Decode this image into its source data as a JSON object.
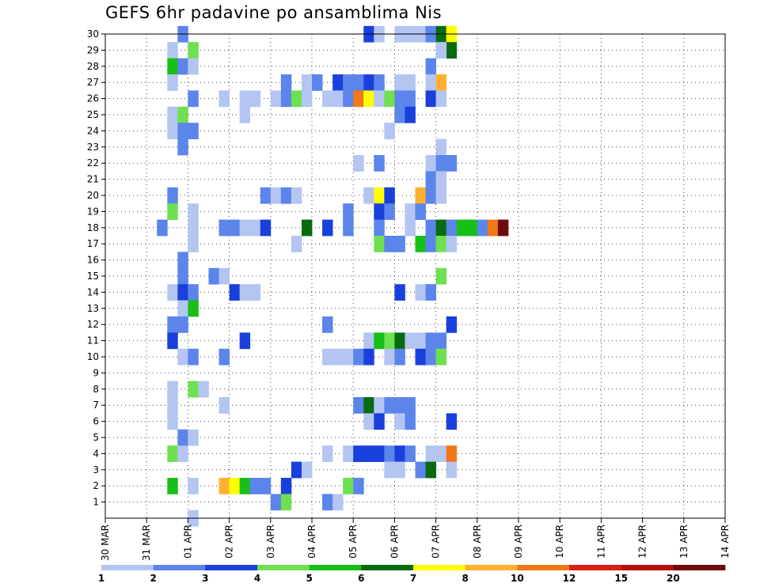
{
  "title": "GEFS 6hr padavine po ansamblima Nis",
  "chart_data": {
    "type": "heatmap",
    "title": "GEFS 6hr padavine po ansamblima Nis",
    "x_ticks": [
      "30 MAR",
      "31 MAR",
      "01 APR",
      "02 APR",
      "03 APR",
      "04 APR",
      "05 APR",
      "06 APR",
      "07 APR",
      "08 APR",
      "09 APR",
      "10 APR",
      "11 APR",
      "12 APR",
      "13 APR",
      "14 APR"
    ],
    "x_step": "6 hours",
    "y_range": [
      0,
      30
    ],
    "y_ticks": [
      1,
      2,
      3,
      4,
      5,
      6,
      7,
      8,
      9,
      10,
      11,
      12,
      13,
      14,
      15,
      16,
      17,
      18,
      19,
      20,
      21,
      22,
      23,
      24,
      25,
      26,
      27,
      28,
      29,
      30
    ],
    "grid": "dotted",
    "legend_placement": "bottom",
    "bins": [
      1,
      2,
      3,
      4,
      5,
      6,
      7,
      8,
      10,
      12,
      15,
      20
    ],
    "bin_labels": [
      "1",
      "2",
      "3",
      "4",
      "5",
      "6",
      "7",
      "8",
      "10",
      "12",
      "15",
      "20"
    ],
    "colors": [
      "#b4c5f2",
      "#5b85ea",
      "#1a40dc",
      "#6fe050",
      "#16c016",
      "#0a6a10",
      "#ffff00",
      "#ffb030",
      "#f07818",
      "#d82010",
      "#b81008",
      "#6e0a0a"
    ],
    "cells": [
      {
        "member": 30,
        "step": 7,
        "bin": 2
      },
      {
        "member": 30,
        "step": 25,
        "bin": 3
      },
      {
        "member": 30,
        "step": 26,
        "bin": 1
      },
      {
        "member": 30,
        "step": 28,
        "bin": 1
      },
      {
        "member": 30,
        "step": 29,
        "bin": 1
      },
      {
        "member": 30,
        "step": 30,
        "bin": 1
      },
      {
        "member": 30,
        "step": 31,
        "bin": 2
      },
      {
        "member": 30,
        "step": 32,
        "bin": 6
      },
      {
        "member": 30,
        "step": 33,
        "bin": 7
      },
      {
        "member": 29,
        "step": 6,
        "bin": 1
      },
      {
        "member": 29,
        "step": 8,
        "bin": 4
      },
      {
        "member": 29,
        "step": 33,
        "bin": 6
      },
      {
        "member": 29,
        "step": 32,
        "bin": 1
      },
      {
        "member": 28,
        "step": 6,
        "bin": 5
      },
      {
        "member": 28,
        "step": 7,
        "bin": 2
      },
      {
        "member": 28,
        "step": 8,
        "bin": 1
      },
      {
        "member": 28,
        "step": 31,
        "bin": 2
      },
      {
        "member": 27,
        "step": 6,
        "bin": 1
      },
      {
        "member": 27,
        "step": 17,
        "bin": 2
      },
      {
        "member": 27,
        "step": 19,
        "bin": 1
      },
      {
        "member": 27,
        "step": 20,
        "bin": 2
      },
      {
        "member": 27,
        "step": 22,
        "bin": 3
      },
      {
        "member": 27,
        "step": 23,
        "bin": 2
      },
      {
        "member": 27,
        "step": 24,
        "bin": 2
      },
      {
        "member": 27,
        "step": 25,
        "bin": 3
      },
      {
        "member": 27,
        "step": 26,
        "bin": 2
      },
      {
        "member": 27,
        "step": 28,
        "bin": 1
      },
      {
        "member": 27,
        "step": 29,
        "bin": 1
      },
      {
        "member": 27,
        "step": 31,
        "bin": 1
      },
      {
        "member": 27,
        "step": 32,
        "bin": 8
      },
      {
        "member": 26,
        "step": 8,
        "bin": 2
      },
      {
        "member": 26,
        "step": 11,
        "bin": 1
      },
      {
        "member": 26,
        "step": 13,
        "bin": 1
      },
      {
        "member": 26,
        "step": 14,
        "bin": 1
      },
      {
        "member": 26,
        "step": 16,
        "bin": 1
      },
      {
        "member": 26,
        "step": 17,
        "bin": 2
      },
      {
        "member": 26,
        "step": 18,
        "bin": 4
      },
      {
        "member": 26,
        "step": 19,
        "bin": 1
      },
      {
        "member": 26,
        "step": 21,
        "bin": 1
      },
      {
        "member": 26,
        "step": 22,
        "bin": 1
      },
      {
        "member": 26,
        "step": 23,
        "bin": 2
      },
      {
        "member": 26,
        "step": 24,
        "bin": 9
      },
      {
        "member": 26,
        "step": 25,
        "bin": 7
      },
      {
        "member": 26,
        "step": 26,
        "bin": 1
      },
      {
        "member": 26,
        "step": 27,
        "bin": 4
      },
      {
        "member": 26,
        "step": 28,
        "bin": 2
      },
      {
        "member": 26,
        "step": 29,
        "bin": 2
      },
      {
        "member": 26,
        "step": 31,
        "bin": 3
      },
      {
        "member": 26,
        "step": 32,
        "bin": 1
      },
      {
        "member": 25,
        "step": 6,
        "bin": 1
      },
      {
        "member": 25,
        "step": 7,
        "bin": 4
      },
      {
        "member": 25,
        "step": 13,
        "bin": 1
      },
      {
        "member": 25,
        "step": 28,
        "bin": 2
      },
      {
        "member": 25,
        "step": 29,
        "bin": 3
      },
      {
        "member": 24,
        "step": 6,
        "bin": 1
      },
      {
        "member": 24,
        "step": 7,
        "bin": 2
      },
      {
        "member": 24,
        "step": 8,
        "bin": 2
      },
      {
        "member": 24,
        "step": 27,
        "bin": 1
      },
      {
        "member": 23,
        "step": 7,
        "bin": 2
      },
      {
        "member": 23,
        "step": 32,
        "bin": 1
      },
      {
        "member": 22,
        "step": 24,
        "bin": 1
      },
      {
        "member": 22,
        "step": 26,
        "bin": 2
      },
      {
        "member": 22,
        "step": 31,
        "bin": 1
      },
      {
        "member": 22,
        "step": 32,
        "bin": 2
      },
      {
        "member": 22,
        "step": 33,
        "bin": 2
      },
      {
        "member": 21,
        "step": 31,
        "bin": 2
      },
      {
        "member": 21,
        "step": 32,
        "bin": 1
      },
      {
        "member": 20,
        "step": 6,
        "bin": 2
      },
      {
        "member": 20,
        "step": 15,
        "bin": 2
      },
      {
        "member": 20,
        "step": 16,
        "bin": 1
      },
      {
        "member": 20,
        "step": 17,
        "bin": 2
      },
      {
        "member": 20,
        "step": 18,
        "bin": 1
      },
      {
        "member": 20,
        "step": 25,
        "bin": 1
      },
      {
        "member": 20,
        "step": 26,
        "bin": 7
      },
      {
        "member": 20,
        "step": 27,
        "bin": 3
      },
      {
        "member": 20,
        "step": 30,
        "bin": 8
      },
      {
        "member": 20,
        "step": 31,
        "bin": 2
      },
      {
        "member": 20,
        "step": 32,
        "bin": 1
      },
      {
        "member": 19,
        "step": 6,
        "bin": 4
      },
      {
        "member": 19,
        "step": 8,
        "bin": 1
      },
      {
        "member": 19,
        "step": 23,
        "bin": 2
      },
      {
        "member": 19,
        "step": 26,
        "bin": 3
      },
      {
        "member": 19,
        "step": 27,
        "bin": 2
      },
      {
        "member": 19,
        "step": 29,
        "bin": 1
      },
      {
        "member": 19,
        "step": 30,
        "bin": 2
      },
      {
        "member": 18,
        "step": 5,
        "bin": 2
      },
      {
        "member": 18,
        "step": 8,
        "bin": 1
      },
      {
        "member": 18,
        "step": 11,
        "bin": 2
      },
      {
        "member": 18,
        "step": 12,
        "bin": 2
      },
      {
        "member": 18,
        "step": 13,
        "bin": 1
      },
      {
        "member": 18,
        "step": 14,
        "bin": 1
      },
      {
        "member": 18,
        "step": 15,
        "bin": 3
      },
      {
        "member": 18,
        "step": 19,
        "bin": 6
      },
      {
        "member": 18,
        "step": 21,
        "bin": 3
      },
      {
        "member": 18,
        "step": 23,
        "bin": 2
      },
      {
        "member": 18,
        "step": 26,
        "bin": 2
      },
      {
        "member": 18,
        "step": 29,
        "bin": 1
      },
      {
        "member": 18,
        "step": 31,
        "bin": 2
      },
      {
        "member": 18,
        "step": 32,
        "bin": 6
      },
      {
        "member": 18,
        "step": 33,
        "bin": 2
      },
      {
        "member": 18,
        "step": 34,
        "bin": 5
      },
      {
        "member": 18,
        "step": 35,
        "bin": 5
      },
      {
        "member": 18,
        "step": 36,
        "bin": 2
      },
      {
        "member": 18,
        "step": 37,
        "bin": 9
      },
      {
        "member": 18,
        "step": 38,
        "bin": 12
      },
      {
        "member": 17,
        "step": 8,
        "bin": 1
      },
      {
        "member": 17,
        "step": 18,
        "bin": 1
      },
      {
        "member": 17,
        "step": 26,
        "bin": 4
      },
      {
        "member": 17,
        "step": 27,
        "bin": 2
      },
      {
        "member": 17,
        "step": 28,
        "bin": 2
      },
      {
        "member": 17,
        "step": 30,
        "bin": 5
      },
      {
        "member": 17,
        "step": 31,
        "bin": 2
      },
      {
        "member": 17,
        "step": 32,
        "bin": 4
      },
      {
        "member": 17,
        "step": 33,
        "bin": 1
      },
      {
        "member": 16,
        "step": 7,
        "bin": 2
      },
      {
        "member": 15,
        "step": 7,
        "bin": 2
      },
      {
        "member": 15,
        "step": 10,
        "bin": 2
      },
      {
        "member": 15,
        "step": 11,
        "bin": 1
      },
      {
        "member": 15,
        "step": 32,
        "bin": 4
      },
      {
        "member": 14,
        "step": 6,
        "bin": 1
      },
      {
        "member": 14,
        "step": 7,
        "bin": 3
      },
      {
        "member": 14,
        "step": 8,
        "bin": 2
      },
      {
        "member": 14,
        "step": 12,
        "bin": 3
      },
      {
        "member": 14,
        "step": 13,
        "bin": 1
      },
      {
        "member": 14,
        "step": 14,
        "bin": 1
      },
      {
        "member": 14,
        "step": 28,
        "bin": 3
      },
      {
        "member": 14,
        "step": 30,
        "bin": 1
      },
      {
        "member": 14,
        "step": 31,
        "bin": 2
      },
      {
        "member": 13,
        "step": 7,
        "bin": 1
      },
      {
        "member": 13,
        "step": 8,
        "bin": 5
      },
      {
        "member": 12,
        "step": 6,
        "bin": 2
      },
      {
        "member": 12,
        "step": 7,
        "bin": 2
      },
      {
        "member": 12,
        "step": 21,
        "bin": 2
      },
      {
        "member": 12,
        "step": 33,
        "bin": 3
      },
      {
        "member": 11,
        "step": 6,
        "bin": 3
      },
      {
        "member": 11,
        "step": 13,
        "bin": 3
      },
      {
        "member": 11,
        "step": 25,
        "bin": 1
      },
      {
        "member": 11,
        "step": 26,
        "bin": 5
      },
      {
        "member": 11,
        "step": 27,
        "bin": 4
      },
      {
        "member": 11,
        "step": 28,
        "bin": 6
      },
      {
        "member": 11,
        "step": 29,
        "bin": 1
      },
      {
        "member": 11,
        "step": 30,
        "bin": 1
      },
      {
        "member": 11,
        "step": 31,
        "bin": 2
      },
      {
        "member": 11,
        "step": 32,
        "bin": 2
      },
      {
        "member": 10,
        "step": 7,
        "bin": 1
      },
      {
        "member": 10,
        "step": 8,
        "bin": 2
      },
      {
        "member": 10,
        "step": 11,
        "bin": 2
      },
      {
        "member": 10,
        "step": 21,
        "bin": 1
      },
      {
        "member": 10,
        "step": 22,
        "bin": 1
      },
      {
        "member": 10,
        "step": 23,
        "bin": 1
      },
      {
        "member": 10,
        "step": 24,
        "bin": 2
      },
      {
        "member": 10,
        "step": 25,
        "bin": 3
      },
      {
        "member": 10,
        "step": 27,
        "bin": 1
      },
      {
        "member": 10,
        "step": 28,
        "bin": 2
      },
      {
        "member": 10,
        "step": 30,
        "bin": 3
      },
      {
        "member": 10,
        "step": 31,
        "bin": 2
      },
      {
        "member": 10,
        "step": 32,
        "bin": 4
      },
      {
        "member": 8,
        "step": 6,
        "bin": 1
      },
      {
        "member": 8,
        "step": 8,
        "bin": 4
      },
      {
        "member": 8,
        "step": 9,
        "bin": 1
      },
      {
        "member": 7,
        "step": 6,
        "bin": 1
      },
      {
        "member": 7,
        "step": 11,
        "bin": 1
      },
      {
        "member": 7,
        "step": 24,
        "bin": 2
      },
      {
        "member": 7,
        "step": 25,
        "bin": 6
      },
      {
        "member": 7,
        "step": 26,
        "bin": 1
      },
      {
        "member": 7,
        "step": 27,
        "bin": 2
      },
      {
        "member": 7,
        "step": 28,
        "bin": 2
      },
      {
        "member": 7,
        "step": 29,
        "bin": 2
      },
      {
        "member": 6,
        "step": 6,
        "bin": 1
      },
      {
        "member": 6,
        "step": 25,
        "bin": 1
      },
      {
        "member": 6,
        "step": 26,
        "bin": 3
      },
      {
        "member": 6,
        "step": 28,
        "bin": 1
      },
      {
        "member": 6,
        "step": 29,
        "bin": 2
      },
      {
        "member": 6,
        "step": 33,
        "bin": 3
      },
      {
        "member": 5,
        "step": 7,
        "bin": 2
      },
      {
        "member": 5,
        "step": 8,
        "bin": 1
      },
      {
        "member": 4,
        "step": 6,
        "bin": 4
      },
      {
        "member": 4,
        "step": 7,
        "bin": 1
      },
      {
        "member": 4,
        "step": 21,
        "bin": 1
      },
      {
        "member": 4,
        "step": 23,
        "bin": 1
      },
      {
        "member": 4,
        "step": 24,
        "bin": 3
      },
      {
        "member": 4,
        "step": 25,
        "bin": 3
      },
      {
        "member": 4,
        "step": 26,
        "bin": 3
      },
      {
        "member": 4,
        "step": 27,
        "bin": 2
      },
      {
        "member": 4,
        "step": 28,
        "bin": 3
      },
      {
        "member": 4,
        "step": 29,
        "bin": 2
      },
      {
        "member": 4,
        "step": 31,
        "bin": 1
      },
      {
        "member": 4,
        "step": 32,
        "bin": 1
      },
      {
        "member": 4,
        "step": 33,
        "bin": 9
      },
      {
        "member": 3,
        "step": 18,
        "bin": 3
      },
      {
        "member": 3,
        "step": 19,
        "bin": 1
      },
      {
        "member": 3,
        "step": 27,
        "bin": 1
      },
      {
        "member": 3,
        "step": 28,
        "bin": 1
      },
      {
        "member": 3,
        "step": 30,
        "bin": 2
      },
      {
        "member": 3,
        "step": 31,
        "bin": 6
      },
      {
        "member": 3,
        "step": 33,
        "bin": 1
      },
      {
        "member": 2,
        "step": 6,
        "bin": 5
      },
      {
        "member": 2,
        "step": 8,
        "bin": 1
      },
      {
        "member": 2,
        "step": 11,
        "bin": 8
      },
      {
        "member": 2,
        "step": 12,
        "bin": 7
      },
      {
        "member": 2,
        "step": 13,
        "bin": 5
      },
      {
        "member": 2,
        "step": 14,
        "bin": 2
      },
      {
        "member": 2,
        "step": 15,
        "bin": 2
      },
      {
        "member": 2,
        "step": 17,
        "bin": 3
      },
      {
        "member": 2,
        "step": 23,
        "bin": 4
      },
      {
        "member": 2,
        "step": 24,
        "bin": 2
      },
      {
        "member": 1,
        "step": 16,
        "bin": 2
      },
      {
        "member": 1,
        "step": 17,
        "bin": 4
      },
      {
        "member": 1,
        "step": 21,
        "bin": 2
      },
      {
        "member": 1,
        "step": 22,
        "bin": 1
      },
      {
        "member": 0,
        "step": 8,
        "bin": 1
      }
    ]
  }
}
